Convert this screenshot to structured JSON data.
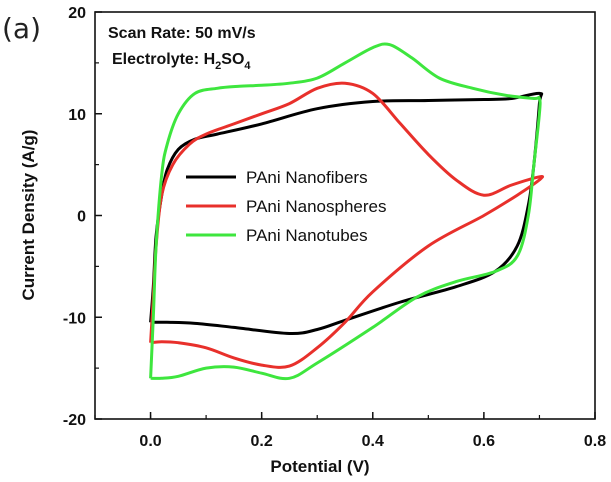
{
  "panel_label": "(a)",
  "annotations": {
    "scan_rate": "Scan Rate: 50 mV/s",
    "electrolyte_prefix": "Electrolyte: H",
    "electrolyte_sub1": "2",
    "electrolyte_mid": "SO",
    "electrolyte_sub2": "4"
  },
  "chart_data": {
    "type": "line",
    "title": "",
    "xlabel": "Potential (V)",
    "ylabel": "Current Density (A/g)",
    "xlim": [
      -0.1,
      0.8
    ],
    "ylim": [
      -20,
      20
    ],
    "xticks": [
      "0.0",
      "0.2",
      "0.4",
      "0.6",
      "0.8"
    ],
    "yticks": [
      "20",
      "10",
      "0",
      "-10",
      "-20"
    ],
    "xtick_values": [
      0.0,
      0.2,
      0.4,
      0.6,
      0.8
    ],
    "ytick_values": [
      20,
      10,
      0,
      -10,
      -20
    ],
    "grid": false,
    "legend_position": "center",
    "series": [
      {
        "name": "PAni Nanofibers",
        "color": "#000000",
        "x": [
          0.0,
          0.005,
          0.01,
          0.02,
          0.03,
          0.05,
          0.08,
          0.12,
          0.2,
          0.3,
          0.4,
          0.5,
          0.6,
          0.65,
          0.7,
          0.7,
          0.69,
          0.68,
          0.66,
          0.62,
          0.55,
          0.45,
          0.35,
          0.3,
          0.25,
          0.15,
          0.08,
          0.03,
          0.0
        ],
        "y": [
          -10.5,
          -7,
          -2,
          2,
          4.5,
          6.5,
          7.5,
          8,
          9,
          10.5,
          11.2,
          11.3,
          11.4,
          11.5,
          12,
          11,
          5,
          1,
          -3,
          -5.5,
          -7,
          -8.5,
          -10.3,
          -11.2,
          -11.6,
          -11,
          -10.6,
          -10.5,
          -10.5
        ]
      },
      {
        "name": "PAni Nanospheres",
        "color": "#e8302b",
        "x": [
          0.0,
          0.005,
          0.01,
          0.02,
          0.04,
          0.07,
          0.1,
          0.15,
          0.2,
          0.25,
          0.3,
          0.35,
          0.4,
          0.45,
          0.5,
          0.55,
          0.6,
          0.65,
          0.7,
          0.7,
          0.66,
          0.6,
          0.5,
          0.4,
          0.35,
          0.3,
          0.25,
          0.2,
          0.15,
          0.1,
          0.05,
          0.02,
          0.0
        ],
        "y": [
          -12.5,
          -8,
          -3,
          2,
          5,
          7,
          8,
          9,
          10,
          11,
          12.5,
          13,
          12,
          9,
          6,
          3.5,
          2,
          3,
          3.8,
          3.5,
          2,
          0,
          -3,
          -7.5,
          -10.5,
          -13,
          -14.8,
          -14.7,
          -14,
          -13,
          -12.5,
          -12.4,
          -12.5
        ]
      },
      {
        "name": "PAni Nanotubes",
        "color": "#3ee63e",
        "x": [
          0.0,
          0.005,
          0.01,
          0.02,
          0.03,
          0.05,
          0.08,
          0.12,
          0.16,
          0.2,
          0.25,
          0.3,
          0.35,
          0.4,
          0.43,
          0.47,
          0.52,
          0.58,
          0.64,
          0.69,
          0.7,
          0.7,
          0.69,
          0.68,
          0.66,
          0.62,
          0.55,
          0.48,
          0.4,
          0.3,
          0.25,
          0.2,
          0.15,
          0.1,
          0.05,
          0.02,
          0.0
        ],
        "y": [
          -16,
          -10,
          -3,
          4,
          7,
          10,
          12,
          12.5,
          12.7,
          12.8,
          13,
          13.5,
          15,
          16.5,
          16.8,
          15.5,
          13.5,
          12.5,
          11.8,
          11.5,
          11.5,
          10,
          5,
          0,
          -4,
          -5.5,
          -6.5,
          -8,
          -11,
          -14.5,
          -16,
          -15.5,
          -14.9,
          -15,
          -15.8,
          -16,
          -16
        ]
      }
    ]
  }
}
